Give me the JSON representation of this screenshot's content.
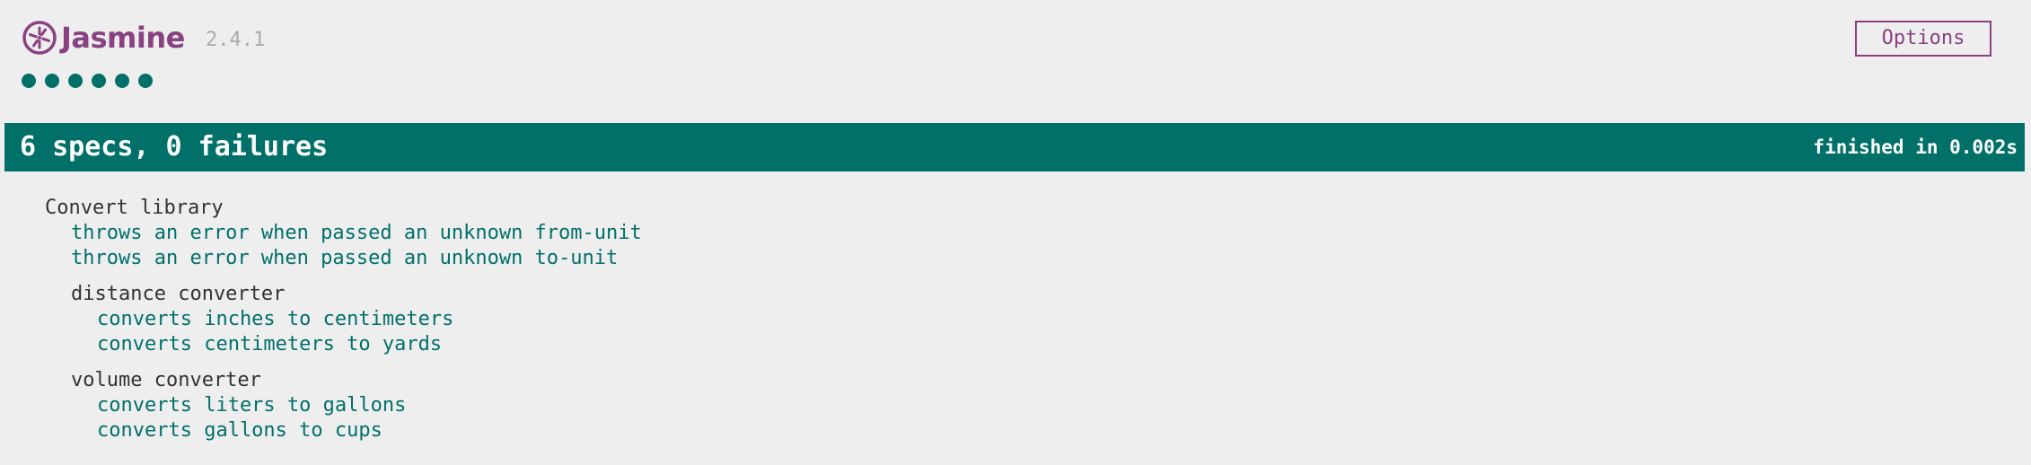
{
  "banner": {
    "logo_text": "Jasmine",
    "version": "2.4.1",
    "options_label": "Options",
    "brand_color": "#8a4182"
  },
  "symbol_summary": {
    "passed_count": 6,
    "status": "passed",
    "color": "#007069"
  },
  "bar": {
    "overall": "6 specs, 0 failures",
    "duration": "finished in 0.002s",
    "color": "#007069"
  },
  "results": {
    "suite": {
      "title": "Convert library",
      "specs": [
        "throws an error when passed an unknown from-unit",
        "throws an error when passed an unknown to-unit"
      ],
      "suites": [
        {
          "title": "distance converter",
          "specs": [
            "converts inches to centimeters",
            "converts centimeters to yards"
          ]
        },
        {
          "title": "volume converter",
          "specs": [
            "converts liters to gallons",
            "converts gallons to cups"
          ]
        }
      ]
    }
  }
}
